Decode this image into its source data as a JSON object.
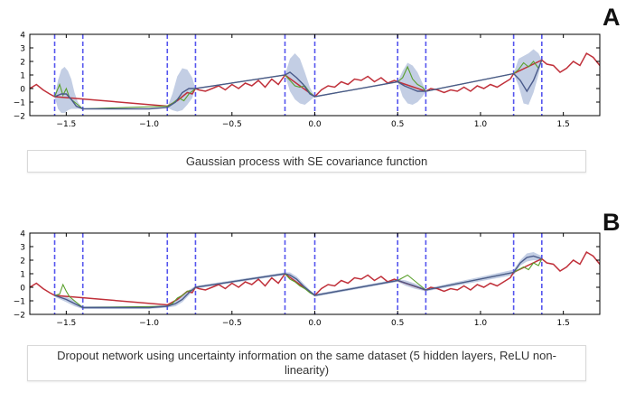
{
  "panels": [
    {
      "letter": "A",
      "caption": "Gaussian process with SE covariance function"
    },
    {
      "letter": "B",
      "caption": "Dropout network using uncertainty information on the same dataset (5 hidden layers, ReLU non-linearity)"
    }
  ],
  "colors": {
    "data_series": "#c0303a",
    "mean_series": "#4a5a8a",
    "sample_series": "#5aa02c",
    "uncertainty_band": "#b8c6df",
    "gap_markers": "#5555ee"
  },
  "chart_data": [
    {
      "panel": "A",
      "type": "line",
      "xlim": [
        -1.72,
        1.72
      ],
      "ylim": [
        -2,
        4
      ],
      "xticks": [
        -1.5,
        -1.0,
        -0.5,
        0.0,
        0.5,
        1.0,
        1.5
      ],
      "xtick_labels": [
        "−1.5",
        "−1.0",
        "−0.5",
        "0.0",
        "0.5",
        "1.0",
        "1.5"
      ],
      "yticks": [
        -2,
        -1,
        0,
        1,
        2,
        3,
        4
      ],
      "ytick_labels": [
        "−2",
        "−1",
        "0",
        "1",
        "2",
        "3",
        "4"
      ],
      "vlines": [
        -1.57,
        -1.4,
        -0.89,
        -0.72,
        -0.18,
        0.0,
        0.5,
        0.67,
        1.2,
        1.37
      ],
      "data": {
        "x": [
          -1.72,
          -1.68,
          -1.64,
          -1.6,
          -1.57,
          -0.89,
          -0.86,
          -0.83,
          -0.8,
          -0.77,
          -0.74,
          -0.72,
          -0.7,
          -0.66,
          -0.62,
          -0.58,
          -0.54,
          -0.5,
          -0.46,
          -0.42,
          -0.38,
          -0.34,
          -0.3,
          -0.26,
          -0.22,
          -0.18,
          0.0,
          0.04,
          0.08,
          0.12,
          0.16,
          0.2,
          0.24,
          0.28,
          0.32,
          0.36,
          0.4,
          0.44,
          0.48,
          0.5,
          0.67,
          0.7,
          0.74,
          0.78,
          0.82,
          0.86,
          0.9,
          0.94,
          0.98,
          1.02,
          1.06,
          1.1,
          1.14,
          1.18,
          1.2,
          1.37,
          1.4,
          1.44,
          1.48,
          1.52,
          1.56,
          1.6,
          1.64,
          1.68,
          1.72
        ],
        "y": [
          0.0,
          0.3,
          -0.1,
          -0.4,
          -0.6,
          -1.3,
          -1.1,
          -0.9,
          -0.6,
          -0.3,
          -0.4,
          0.0,
          -0.1,
          -0.2,
          0.0,
          0.2,
          -0.1,
          0.3,
          0.0,
          0.4,
          0.2,
          0.6,
          0.1,
          0.7,
          0.3,
          1.0,
          -0.6,
          -0.1,
          0.2,
          0.1,
          0.5,
          0.3,
          0.7,
          0.6,
          0.9,
          0.5,
          0.8,
          0.4,
          0.6,
          0.5,
          -0.2,
          0.0,
          -0.1,
          -0.3,
          -0.1,
          -0.2,
          0.1,
          -0.2,
          0.2,
          0.0,
          0.3,
          0.1,
          0.4,
          0.7,
          1.1,
          2.1,
          1.8,
          1.7,
          1.2,
          1.5,
          2.0,
          1.7,
          2.6,
          2.3,
          1.7
        ]
      },
      "mean": {
        "x": [
          -1.57,
          -1.53,
          -1.5,
          -1.47,
          -1.44,
          -1.4,
          -1.2,
          -1.0,
          -0.89,
          -0.84,
          -0.8,
          -0.76,
          -0.72,
          -0.18,
          -0.15,
          -0.11,
          -0.07,
          -0.03,
          0.0,
          0.5,
          0.54,
          0.58,
          0.62,
          0.67,
          1.2,
          1.24,
          1.28,
          1.32,
          1.37
        ],
        "y": [
          -0.6,
          -0.4,
          -0.4,
          -0.8,
          -1.3,
          -1.5,
          -1.5,
          -1.5,
          -1.4,
          -1.0,
          -0.3,
          0.0,
          0.0,
          1.0,
          1.2,
          0.8,
          0.3,
          -0.4,
          -0.6,
          0.5,
          0.2,
          0.0,
          -0.2,
          -0.2,
          1.1,
          0.6,
          -0.2,
          0.6,
          2.1
        ]
      },
      "sample": {
        "x": [
          -1.57,
          -1.54,
          -1.52,
          -1.5,
          -1.48,
          -1.45,
          -1.42,
          -1.4,
          -0.89,
          -0.86,
          -0.82,
          -0.79,
          -0.76,
          -0.72,
          -0.18,
          -0.15,
          -0.12,
          -0.09,
          -0.06,
          -0.03,
          0.0,
          0.5,
          0.53,
          0.56,
          0.59,
          0.62,
          0.65,
          0.67,
          1.2,
          1.23,
          1.26,
          1.29,
          1.32,
          1.35,
          1.37
        ],
        "y": [
          -0.6,
          0.3,
          -0.5,
          0.0,
          -0.7,
          -1.0,
          -1.3,
          -1.5,
          -1.3,
          -1.1,
          -0.7,
          -0.9,
          -0.4,
          0.0,
          1.0,
          0.6,
          0.2,
          0.1,
          0.2,
          -0.3,
          -0.6,
          0.5,
          0.8,
          1.6,
          0.7,
          0.3,
          0.1,
          -0.2,
          1.1,
          1.4,
          1.9,
          1.6,
          2.0,
          1.5,
          2.1
        ]
      },
      "band": {
        "x": [
          -1.57,
          -1.55,
          -1.53,
          -1.51,
          -1.49,
          -1.47,
          -1.45,
          -1.43,
          -1.4,
          -0.89,
          -0.86,
          -0.83,
          -0.8,
          -0.77,
          -0.74,
          -0.72,
          -0.18,
          -0.15,
          -0.12,
          -0.09,
          -0.06,
          -0.03,
          0.0,
          0.5,
          0.53,
          0.56,
          0.59,
          0.62,
          0.65,
          0.67,
          1.2,
          1.23,
          1.26,
          1.29,
          1.32,
          1.35,
          1.37
        ],
        "upper": [
          -0.6,
          0.6,
          1.4,
          1.6,
          1.3,
          0.7,
          -0.3,
          -1.0,
          -1.5,
          -1.4,
          -0.4,
          0.9,
          1.5,
          1.4,
          0.8,
          0.0,
          1.0,
          2.2,
          2.6,
          2.2,
          1.2,
          0.1,
          -0.6,
          0.5,
          1.3,
          1.9,
          1.7,
          1.2,
          0.4,
          -0.2,
          1.1,
          2.2,
          2.4,
          2.6,
          2.9,
          2.6,
          2.1
        ],
        "lower": [
          -0.6,
          -1.5,
          -1.8,
          -1.8,
          -1.6,
          -1.5,
          -1.5,
          -1.5,
          -1.5,
          -1.4,
          -1.6,
          -1.7,
          -1.6,
          -1.2,
          -0.7,
          0.0,
          1.0,
          -0.2,
          -0.8,
          -1.1,
          -1.2,
          -0.9,
          -0.6,
          0.5,
          -0.6,
          -1.1,
          -1.2,
          -1.0,
          -0.6,
          -0.2,
          1.1,
          0.2,
          -1.1,
          -1.2,
          -0.3,
          1.0,
          2.1
        ]
      }
    },
    {
      "panel": "B",
      "type": "line",
      "xlim": [
        -1.72,
        1.72
      ],
      "ylim": [
        -2,
        4
      ],
      "xticks": [
        -1.5,
        -1.0,
        -0.5,
        0.0,
        0.5,
        1.0,
        1.5
      ],
      "xtick_labels": [
        "−1.5",
        "−1.0",
        "−0.5",
        "0.0",
        "0.5",
        "1.0",
        "1.5"
      ],
      "yticks": [
        -2,
        -1,
        0,
        1,
        2,
        3,
        4
      ],
      "ytick_labels": [
        "−2",
        "−1",
        "0",
        "1",
        "2",
        "3",
        "4"
      ],
      "vlines": [
        -1.57,
        -1.4,
        -0.89,
        -0.72,
        -0.18,
        0.0,
        0.5,
        0.67,
        1.2,
        1.37
      ],
      "data": {
        "x": [
          -1.72,
          -1.68,
          -1.64,
          -1.6,
          -1.57,
          -0.89,
          -0.86,
          -0.83,
          -0.8,
          -0.77,
          -0.74,
          -0.72,
          -0.7,
          -0.66,
          -0.62,
          -0.58,
          -0.54,
          -0.5,
          -0.46,
          -0.42,
          -0.38,
          -0.34,
          -0.3,
          -0.26,
          -0.22,
          -0.18,
          0.0,
          0.04,
          0.08,
          0.12,
          0.16,
          0.2,
          0.24,
          0.28,
          0.32,
          0.36,
          0.4,
          0.44,
          0.48,
          0.5,
          0.67,
          0.7,
          0.74,
          0.78,
          0.82,
          0.86,
          0.9,
          0.94,
          0.98,
          1.02,
          1.06,
          1.1,
          1.14,
          1.18,
          1.2,
          1.37,
          1.4,
          1.44,
          1.48,
          1.52,
          1.56,
          1.6,
          1.64,
          1.68,
          1.72
        ],
        "y": [
          0.0,
          0.3,
          -0.1,
          -0.4,
          -0.6,
          -1.3,
          -1.1,
          -0.9,
          -0.6,
          -0.3,
          -0.4,
          0.0,
          -0.1,
          -0.2,
          0.0,
          0.2,
          -0.1,
          0.3,
          0.0,
          0.4,
          0.2,
          0.6,
          0.1,
          0.7,
          0.3,
          1.0,
          -0.6,
          -0.1,
          0.2,
          0.1,
          0.5,
          0.3,
          0.7,
          0.6,
          0.9,
          0.5,
          0.8,
          0.4,
          0.6,
          0.5,
          -0.2,
          0.0,
          -0.1,
          -0.3,
          -0.1,
          -0.2,
          0.1,
          -0.2,
          0.2,
          0.0,
          0.3,
          0.1,
          0.4,
          0.7,
          1.1,
          2.1,
          1.8,
          1.7,
          1.2,
          1.5,
          2.0,
          1.7,
          2.6,
          2.3,
          1.7
        ]
      },
      "mean": {
        "x": [
          -1.57,
          -1.5,
          -1.45,
          -1.4,
          -1.2,
          -1.0,
          -0.89,
          -0.84,
          -0.8,
          -0.76,
          -0.72,
          -0.18,
          -0.15,
          -0.11,
          -0.07,
          -0.03,
          0.0,
          0.5,
          0.55,
          0.6,
          0.67,
          1.2,
          1.24,
          1.28,
          1.32,
          1.37
        ],
        "y": [
          -0.6,
          -0.9,
          -1.2,
          -1.5,
          -1.5,
          -1.5,
          -1.4,
          -1.2,
          -0.9,
          -0.4,
          0.0,
          1.0,
          0.9,
          0.6,
          0.1,
          -0.3,
          -0.6,
          0.5,
          0.3,
          0.1,
          -0.2,
          1.1,
          1.8,
          2.2,
          2.3,
          2.1
        ]
      },
      "sample": {
        "x": [
          -1.57,
          -1.54,
          -1.52,
          -1.5,
          -1.48,
          -1.45,
          -1.42,
          -1.4,
          -0.89,
          -0.86,
          -0.83,
          -0.8,
          -0.77,
          -0.74,
          -0.72,
          -0.18,
          -0.15,
          -0.12,
          -0.09,
          -0.06,
          -0.03,
          0.0,
          0.5,
          0.53,
          0.56,
          0.59,
          0.62,
          0.65,
          0.67,
          1.2,
          1.23,
          1.26,
          1.29,
          1.32,
          1.35,
          1.37
        ],
        "y": [
          -0.6,
          -0.5,
          0.2,
          -0.3,
          -0.7,
          -1.0,
          -1.3,
          -1.5,
          -1.4,
          -1.2,
          -0.8,
          -0.6,
          -0.3,
          -0.2,
          0.0,
          1.0,
          0.6,
          0.4,
          0.1,
          -0.1,
          -0.4,
          -0.6,
          0.5,
          0.7,
          0.9,
          0.6,
          0.3,
          0.0,
          -0.2,
          1.1,
          1.3,
          1.5,
          1.3,
          1.8,
          1.6,
          2.1
        ]
      },
      "band": {
        "x": [
          -1.57,
          -1.5,
          -1.45,
          -1.4,
          -1.2,
          -1.0,
          -0.89,
          -0.84,
          -0.8,
          -0.76,
          -0.72,
          -0.18,
          -0.15,
          -0.11,
          -0.07,
          -0.03,
          0.0,
          0.5,
          0.55,
          0.6,
          0.67,
          1.2,
          1.24,
          1.28,
          1.32,
          1.37
        ],
        "upper": [
          -0.5,
          -0.7,
          -1.0,
          -1.4,
          -1.4,
          -1.4,
          -1.3,
          -1.0,
          -0.6,
          -0.2,
          0.1,
          1.1,
          1.1,
          0.8,
          0.3,
          -0.2,
          -0.5,
          0.6,
          0.5,
          0.3,
          -0.1,
          1.3,
          2.0,
          2.5,
          2.6,
          2.3
        ],
        "lower": [
          -0.7,
          -1.1,
          -1.4,
          -1.6,
          -1.6,
          -1.6,
          -1.5,
          -1.4,
          -1.1,
          -0.6,
          -0.1,
          0.9,
          0.7,
          0.4,
          -0.1,
          -0.4,
          -0.7,
          0.4,
          0.1,
          -0.1,
          -0.3,
          0.9,
          1.6,
          1.9,
          2.0,
          1.9
        ]
      }
    }
  ]
}
